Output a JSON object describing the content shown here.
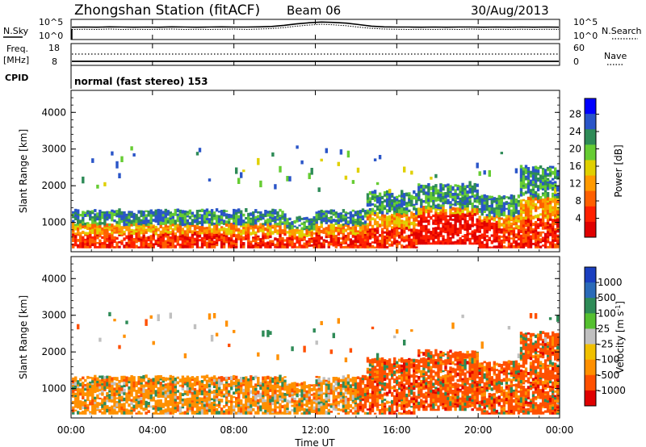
{
  "header": {
    "station": "Zhongshan Station (fitACF)",
    "beam": "Beam 06",
    "date": "30/Aug/2013"
  },
  "panels": {
    "noise": {
      "left_label": "N.Sky",
      "right_label": "N.Search",
      "ticks_left": [
        "10^5",
        "10^0"
      ],
      "ticks_right": [
        "10^5",
        "10^0"
      ],
      "trace_sky": [
        0.62,
        0.63,
        0.62,
        0.64,
        0.63,
        0.62,
        0.63,
        0.62,
        0.64,
        0.63,
        0.62,
        0.63,
        0.64,
        0.63,
        0.63,
        0.64,
        0.66,
        0.72,
        0.8,
        0.86,
        0.9,
        0.88,
        0.84,
        0.76,
        0.68,
        0.64,
        0.63,
        0.63,
        0.62,
        0.63,
        0.62,
        0.63,
        0.63,
        0.62,
        0.63,
        0.62,
        0.63,
        0.62,
        0.63,
        0.62
      ],
      "trace_search": [
        0.5,
        0.51,
        0.5,
        0.52,
        0.5,
        0.51,
        0.5,
        0.51,
        0.52,
        0.5,
        0.51,
        0.5,
        0.51,
        0.52,
        0.5,
        0.52,
        0.55,
        0.6,
        0.68,
        0.74,
        0.78,
        0.75,
        0.7,
        0.62,
        0.56,
        0.52,
        0.51,
        0.5,
        0.51,
        0.5,
        0.51,
        0.5,
        0.52,
        0.5,
        0.51,
        0.5,
        0.51,
        0.5,
        0.51,
        0.5
      ]
    },
    "freq": {
      "left_label": "Freq.",
      "left_unit": "[MHz]",
      "right_label": "Nave",
      "ticks_left": [
        "18",
        "8"
      ],
      "ticks_right": [
        "60",
        "0"
      ]
    },
    "cpid": {
      "label": "CPID",
      "text": "normal (fast stereo) 153"
    }
  },
  "chart_data": [
    {
      "type": "heatmap",
      "name": "power",
      "ylabel": "Slant Range [km]",
      "ylim": [
        200,
        4600
      ],
      "yticks": [
        "1000",
        "2000",
        "3000",
        "4000"
      ],
      "xlim": [
        0,
        24
      ],
      "colorbar_label": "Power [dB]",
      "colorbar_ticks": [
        "4",
        "8",
        "12",
        "16",
        "20",
        "24",
        "28"
      ],
      "colorbar_colors": [
        "#0000ff",
        "#2a55c8",
        "#2e8b57",
        "#66cc33",
        "#e0d000",
        "#ff9a00",
        "#ff6000",
        "#ff2000",
        "#e00000"
      ]
    },
    {
      "type": "heatmap",
      "name": "velocity",
      "ylabel": "Slant Range [km]",
      "ylim": [
        200,
        4600
      ],
      "yticks": [
        "1000",
        "2000",
        "3000",
        "4000"
      ],
      "xlim": [
        0,
        24
      ],
      "xticks": [
        "00:00",
        "04:00",
        "08:00",
        "12:00",
        "16:00",
        "20:00",
        "00:00"
      ],
      "xlabel": "Time UT",
      "colorbar_label": "Velocity [m s^-1]",
      "colorbar_ticks": [
        "1000",
        "500",
        "100",
        "25",
        "-25",
        "-100",
        "-500",
        "-1000"
      ],
      "colorbar_colors": [
        "#1a3fc0",
        "#2a6ab8",
        "#2e8b57",
        "#55c030",
        "#c0c0c0",
        "#f0c000",
        "#ff9000",
        "#ff5000",
        "#e00000"
      ]
    }
  ]
}
